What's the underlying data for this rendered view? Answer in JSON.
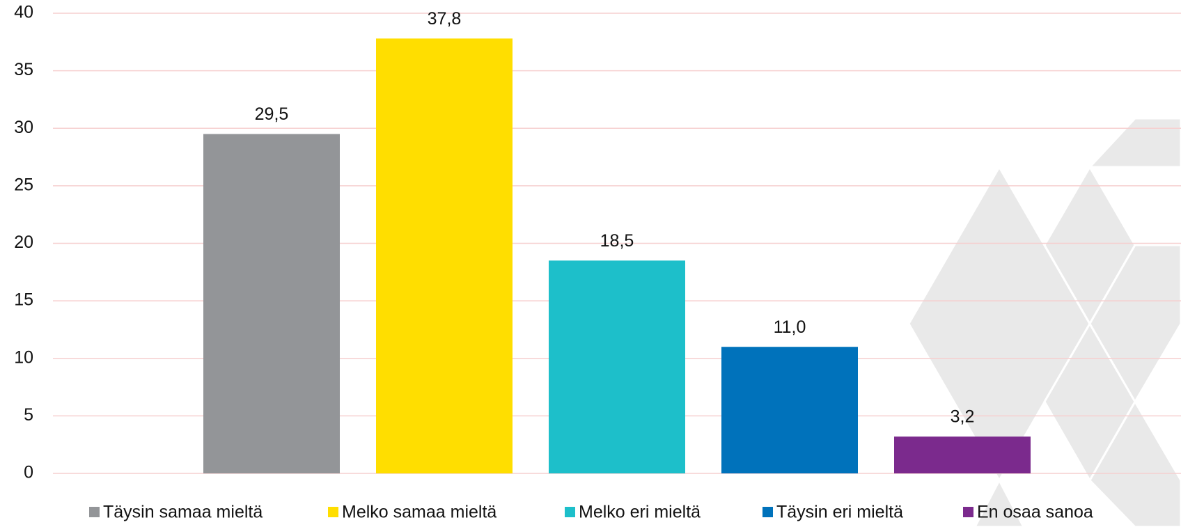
{
  "chart_data": {
    "type": "bar",
    "categories": [
      null
    ],
    "series": [
      {
        "name": "Täysin samaa mieltä",
        "color": "#939598",
        "values": [
          29.5
        ],
        "value_labels": [
          "29,5"
        ]
      },
      {
        "name": "Melko samaa mieltä",
        "color": "#ffde00",
        "values": [
          37.8
        ],
        "value_labels": [
          "37,8"
        ]
      },
      {
        "name": "Melko eri mieltä",
        "color": "#1dbfca",
        "values": [
          18.5
        ],
        "value_labels": [
          "18,5"
        ]
      },
      {
        "name": "Täysin eri mieltä",
        "color": "#0072bb",
        "values": [
          11.0
        ],
        "value_labels": [
          "11,0"
        ]
      },
      {
        "name": "En osaa sanoa",
        "color": "#7b2a8d",
        "values": [
          3.2
        ],
        "value_labels": [
          "3,2"
        ]
      }
    ],
    "ylim": [
      0,
      40
    ],
    "yticks": [
      0,
      5,
      10,
      15,
      20,
      25,
      30,
      35,
      40
    ],
    "grid": true,
    "legend": "bottom"
  }
}
